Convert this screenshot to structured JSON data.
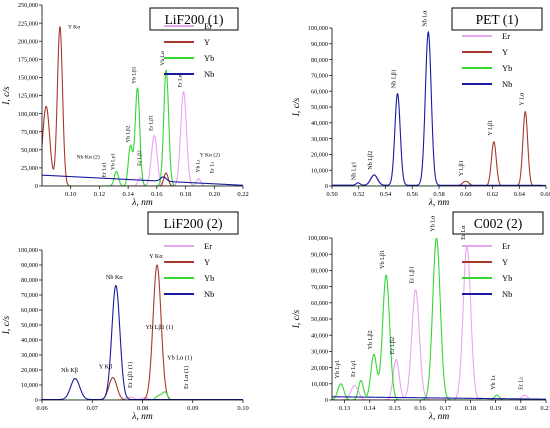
{
  "chart_data": [
    {
      "type": "line",
      "title": "LiF200 (1)",
      "xlabel": "λ, nm",
      "ylabel": "I, c/s",
      "xlim": [
        0.08,
        0.22
      ],
      "ylim": [
        0,
        250000
      ],
      "xticks": [
        0.1,
        0.12,
        0.14,
        0.16,
        0.18,
        0.2,
        0.22
      ],
      "xtick_labels": [
        "0.10",
        "0.12",
        "0.14",
        "0.16",
        "0.18",
        "0.20",
        "0.22"
      ],
      "yticks": [
        0,
        25000,
        50000,
        75000,
        100000,
        125000,
        150000,
        175000,
        200000,
        225000,
        250000
      ],
      "ytick_labels": [
        "0",
        "25,000",
        "50,000",
        "75,000",
        "100,000",
        "125,000",
        "150,000",
        "175,000",
        "200,000",
        "225,000",
        "250,000"
      ],
      "legend": "top-right",
      "series": [
        {
          "name": "Er",
          "color": "#e8a6ee",
          "peaks": [
            [
              0.1485,
              12000,
              0.0015
            ],
            [
              0.1582,
              70000,
              0.002
            ],
            [
              0.1786,
              130000,
              0.002
            ],
            [
              0.189,
              10000,
              0.0015
            ]
          ]
        },
        {
          "name": "Y",
          "color": "#a63a2e",
          "peaks": [
            [
              0.0829,
              110000,
              0.0025
            ],
            [
              0.0925,
              220000,
              0.0018
            ],
            [
              0.1664,
              18000,
              0.0015
            ]
          ]
        },
        {
          "name": "Yb",
          "color": "#33d833",
          "peaks": [
            [
              0.1318,
              20000,
              0.0015
            ],
            [
              0.1416,
              55000,
              0.0015
            ],
            [
              0.1465,
              135000,
              0.0016
            ],
            [
              0.1665,
              160000,
              0.0017
            ]
          ]
        },
        {
          "name": "Nb",
          "color": "#1a1aa0",
          "peaks": [
            [
              0.1646,
              6000,
              0.002
            ]
          ],
          "baseline": [
            [
              0.08,
              15000
            ],
            [
              0.22,
              1000
            ]
          ]
        }
      ],
      "annotations": [
        {
          "text": "Y Kα",
          "at": [
            0.0925,
            222000
          ]
        },
        {
          "text": "Yb Lγ1",
          "at": [
            0.1318,
            22000
          ]
        },
        {
          "text": "Er Lγ1",
          "at": [
            0.1255,
            12000
          ]
        },
        {
          "text": "Yb Lβ2",
          "at": [
            0.1416,
            57000
          ]
        },
        {
          "text": "Yb Lβ1",
          "at": [
            0.1465,
            137000
          ]
        },
        {
          "text": "Er Lβ2",
          "at": [
            0.1505,
            25000
          ]
        },
        {
          "text": "Er Lβ1",
          "at": [
            0.1582,
            72000
          ]
        },
        {
          "text": "Yb Lα",
          "at": [
            0.1665,
            162000
          ]
        },
        {
          "text": "Er Lα",
          "at": [
            0.1786,
            132000
          ]
        },
        {
          "text": "Nb Kα (2)",
          "at": [
            0.125,
            42000
          ]
        },
        {
          "text": "Y Kα (2)",
          "at": [
            0.1885,
            38000
          ]
        },
        {
          "text": "Yb Lι",
          "at": [
            0.191,
            13000
          ]
        },
        {
          "text": "Er Lι",
          "at": [
            0.201,
            12000
          ]
        }
      ]
    },
    {
      "type": "line",
      "title": "PET (1)",
      "xlabel": "λ, nm",
      "ylabel": "I, c/s",
      "xlim": [
        0.5,
        0.66
      ],
      "ylim": [
        0,
        100000
      ],
      "xticks": [
        0.5,
        0.52,
        0.54,
        0.56,
        0.58,
        0.6,
        0.62,
        0.64,
        0.66
      ],
      "xtick_labels": [
        "0.50",
        "0.52",
        "0.54",
        "0.56",
        "0.58",
        "0.60",
        "0.62",
        "0.64",
        "0.66"
      ],
      "yticks": [
        0,
        10000,
        20000,
        30000,
        40000,
        50000,
        60000,
        70000,
        80000,
        90000,
        100000
      ],
      "ytick_labels": [
        "0",
        "10,000",
        "20,000",
        "30,000",
        "40,000",
        "50,000",
        "60,000",
        "70,000",
        "80,000",
        "90,000",
        "100,000"
      ],
      "legend": "top-right",
      "series": [
        {
          "name": "Er",
          "color": "#e8a6ee",
          "peaks": [
            [
              0.5315,
              7000,
              0.003
            ]
          ]
        },
        {
          "name": "Y",
          "color": "#a63a2e",
          "peaks": [
            [
              0.6,
              3000,
              0.0025
            ],
            [
              0.621,
              28000,
              0.0018
            ],
            [
              0.6445,
              47000,
              0.0018
            ]
          ]
        },
        {
          "name": "Yb",
          "color": "#33d833",
          "peaks": []
        },
        {
          "name": "Nb",
          "color": "#1a1aa0",
          "peaks": [
            [
              0.5195,
              1500,
              0.0015
            ],
            [
              0.5315,
              6500,
              0.0025
            ],
            [
              0.549,
              58000,
              0.002
            ],
            [
              0.572,
              97000,
              0.0022
            ]
          ],
          "baseline": [
            [
              0.5,
              500
            ],
            [
              0.66,
              400
            ]
          ]
        }
      ],
      "annotations": [
        {
          "text": "Nb Lγ1",
          "at": [
            0.519,
            3000
          ]
        },
        {
          "text": "Nb Lβ2",
          "at": [
            0.5315,
            9000
          ]
        },
        {
          "text": "Nb Lβ1",
          "at": [
            0.549,
            60000
          ]
        },
        {
          "text": "Nb Lα",
          "at": [
            0.572,
            99000
          ]
        },
        {
          "text": "Y Lβ1",
          "at": [
            0.5995,
            5000
          ]
        },
        {
          "text": "Y Lβ1",
          "at": [
            0.621,
            30000
          ]
        },
        {
          "text": "Y Lα",
          "at": [
            0.6445,
            49000
          ]
        }
      ]
    },
    {
      "type": "line",
      "title": "LiF200 (2)",
      "xlabel": "λ, nm",
      "ylabel": "I, c/s",
      "xlim": [
        0.06,
        0.1
      ],
      "ylim": [
        0,
        100000
      ],
      "xticks": [
        0.06,
        0.07,
        0.08,
        0.09,
        0.1
      ],
      "xtick_labels": [
        "0.06",
        "0.07",
        "0.08",
        "0.09",
        "0.10"
      ],
      "yticks": [
        0,
        10000,
        20000,
        30000,
        40000,
        50000,
        60000,
        70000,
        80000,
        90000,
        100000
      ],
      "ytick_labels": [
        "0",
        "10,000",
        "20,000",
        "30,000",
        "40,000",
        "50,000",
        "60,000",
        "70,000",
        "80,000",
        "90,000",
        "100,000"
      ],
      "legend": "top-right",
      "series": [
        {
          "name": "Er",
          "color": "#e8a6ee",
          "peaks": [
            [
              0.0775,
              2000,
              0.0008
            ],
            [
              0.0805,
              1500,
              0.0007
            ]
          ]
        },
        {
          "name": "Y",
          "color": "#a63a2e",
          "peaks": [
            [
              0.0741,
              15000,
              0.0008
            ],
            [
              0.0829,
              90000,
              0.0008
            ]
          ]
        },
        {
          "name": "Yb",
          "color": "#33d833",
          "peaks": [
            [
              0.0833,
              3000,
              0.0006
            ],
            [
              0.0845,
              5000,
              0.0005
            ]
          ]
        },
        {
          "name": "Nb",
          "color": "#1a1aa0",
          "peaks": [
            [
              0.0666,
              14000,
              0.0009
            ],
            [
              0.0747,
              76000,
              0.0008
            ]
          ],
          "baseline": [
            [
              0.06,
              300
            ],
            [
              0.1,
              300
            ]
          ]
        }
      ],
      "annotations": [
        {
          "text": "Nb Kβ",
          "at": [
            0.0666,
            16000
          ]
        },
        {
          "text": "Y Kβ",
          "at": [
            0.0741,
            17000
          ]
        },
        {
          "text": "Nb Kα",
          "at": [
            0.0747,
            78000
          ]
        },
        {
          "text": "Y Kα",
          "at": [
            0.0829,
            92000
          ]
        },
        {
          "text": "Yb Lβ1 (1)",
          "at": [
            0.0778,
            14000
          ]
        },
        {
          "text": "Er Lβ1 (1)",
          "at": [
            0.0785,
            8000
          ]
        },
        {
          "text": "Yb Lα (1)",
          "at": [
            0.0845,
            7000
          ]
        },
        {
          "text": "Er Lα (1)",
          "at": [
            0.0895,
            6000
          ]
        }
      ]
    },
    {
      "type": "line",
      "title": "C002 (2)",
      "xlabel": "λ, nm",
      "ylabel": "I, c/s",
      "xlim": [
        0.125,
        0.21
      ],
      "ylim": [
        0,
        100000
      ],
      "xticks": [
        0.13,
        0.14,
        0.15,
        0.16,
        0.17,
        0.18,
        0.19,
        0.2,
        0.21
      ],
      "xtick_labels": [
        "0.13",
        "0.14",
        "0.15",
        "0.16",
        "0.17",
        "0.18",
        "0.19",
        "0.20",
        "0.21"
      ],
      "yticks": [
        0,
        10000,
        20000,
        30000,
        40000,
        50000,
        60000,
        70000,
        80000,
        90000,
        100000
      ],
      "ytick_labels": [
        "0",
        "10,000",
        "20,000",
        "30,000",
        "40,000",
        "50,000",
        "60,000",
        "70,000",
        "80,000",
        "90,000",
        "100,000"
      ],
      "legend": "top-right",
      "series": [
        {
          "name": "Er",
          "color": "#e8a6ee",
          "peaks": [
            [
              0.134,
              9000,
              0.0015
            ],
            [
              0.1505,
              25000,
              0.0012
            ],
            [
              0.1582,
              68000,
              0.0015
            ],
            [
              0.1786,
              95000,
              0.0015
            ],
            [
              0.2015,
              3000,
              0.0012
            ]
          ]
        },
        {
          "name": "Y",
          "color": "#a63a2e",
          "peaks": []
        },
        {
          "name": "Yb",
          "color": "#33d833",
          "peaks": [
            [
              0.1285,
              10000,
              0.0012
            ],
            [
              0.1365,
              12000,
              0.001
            ],
            [
              0.1416,
              28000,
              0.0012
            ],
            [
              0.1465,
              77000,
              0.0014
            ],
            [
              0.1665,
              100000,
              0.0015
            ],
            [
              0.1905,
              3000,
              0.001
            ]
          ]
        },
        {
          "name": "Nb",
          "color": "#1a1aa0",
          "peaks": [],
          "baseline": [
            [
              0.125,
              2000
            ],
            [
              0.21,
              500
            ]
          ]
        }
      ],
      "annotations": [
        {
          "text": "Yb Lγ1",
          "at": [
            0.1285,
            12000
          ]
        },
        {
          "text": "Er Lγ1",
          "at": [
            0.135,
            13000
          ]
        },
        {
          "text": "Yb Lβ2",
          "at": [
            0.1416,
            30000
          ]
        },
        {
          "text": "Yb Lβ1",
          "at": [
            0.1465,
            79000
          ]
        },
        {
          "text": "Er Lβ2",
          "at": [
            0.1505,
            27000
          ]
        },
        {
          "text": "Er Lβ1",
          "at": [
            0.1582,
            70000
          ]
        },
        {
          "text": "Yb Lα",
          "at": [
            0.1665,
            102000
          ]
        },
        {
          "text": "Er Lα",
          "at": [
            0.1786,
            97000
          ]
        },
        {
          "text": "Yb Lι",
          "at": [
            0.1905,
            5000
          ]
        },
        {
          "text": "Er Lι",
          "at": [
            0.2015,
            5000
          ]
        }
      ]
    }
  ]
}
